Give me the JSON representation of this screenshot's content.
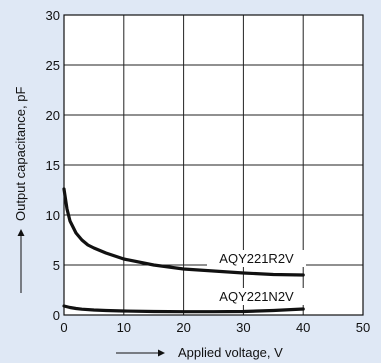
{
  "chart_data": {
    "type": "line",
    "title": "",
    "xlabel": "Applied voltage, V",
    "ylabel": "Output capacitance, pF",
    "xlim": [
      0,
      50
    ],
    "ylim": [
      0,
      30
    ],
    "xticks": [
      0,
      10,
      20,
      30,
      40,
      50
    ],
    "yticks": [
      0,
      5,
      10,
      15,
      20,
      25,
      30
    ],
    "grid": true,
    "colors": {
      "background": "#dfe8f5",
      "plot": "#ffffff",
      "line": "#111111",
      "grid": "#222222"
    },
    "series": [
      {
        "name": "AQY221R2V",
        "x": [
          0,
          0.5,
          1,
          2,
          3,
          4,
          5,
          7,
          10,
          15,
          20,
          25,
          30,
          35,
          40
        ],
        "y": [
          12.6,
          10.6,
          9.4,
          8.2,
          7.5,
          7.0,
          6.7,
          6.2,
          5.6,
          5.0,
          4.6,
          4.4,
          4.2,
          4.05,
          4.0
        ]
      },
      {
        "name": "AQY221N2V",
        "x": [
          0,
          1,
          2,
          3,
          5,
          7,
          10,
          15,
          20,
          25,
          30,
          35,
          40
        ],
        "y": [
          0.9,
          0.75,
          0.65,
          0.58,
          0.5,
          0.45,
          0.4,
          0.35,
          0.33,
          0.33,
          0.35,
          0.45,
          0.6
        ]
      }
    ]
  }
}
